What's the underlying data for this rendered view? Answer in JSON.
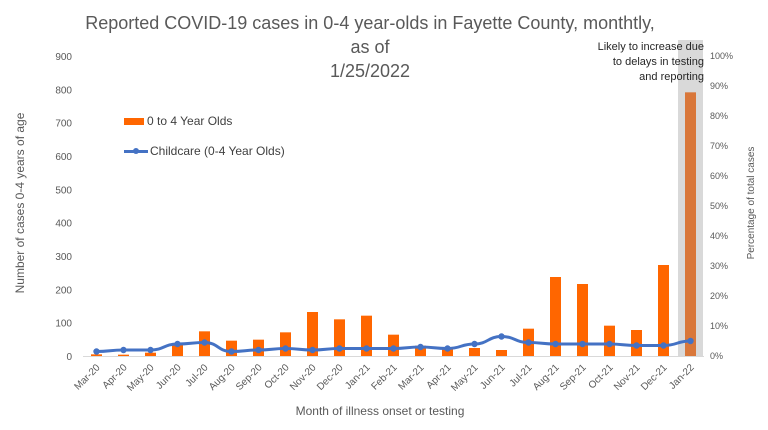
{
  "chart_data": {
    "type": "bar",
    "title": "Reported COVID-19 cases in 0-4 year-olds in Fayette County, monthtly, as of 1/25/2022",
    "title_lines": [
      "Reported COVID-19 cases in 0-4 year-olds in Fayette County, monthtly, as of",
      "1/25/2022"
    ],
    "xlabel": "Month of illness onset or testing",
    "ylabel": "Number of cases 0-4 years of age",
    "y2label": "Percentage of total cases",
    "ylim": [
      0,
      900
    ],
    "y2lim": [
      0,
      100
    ],
    "yticks": [
      "0",
      "100",
      "200",
      "300",
      "400",
      "500",
      "600",
      "700",
      "800",
      "900"
    ],
    "y2ticks": [
      "0%",
      "10%",
      "20%",
      "30%",
      "40%",
      "50%",
      "60%",
      "70%",
      "80%",
      "90%",
      "100%"
    ],
    "grid": false,
    "legend_position": "top-left",
    "categories": [
      "Mar-20",
      "Apr-20",
      "May-20",
      "Jun-20",
      "Jul-20",
      "Aug-20",
      "Sep-20",
      "Oct-20",
      "Nov-20",
      "Dec-20",
      "Jan-21",
      "Feb-21",
      "Mar-21",
      "Apr-21",
      "May-21",
      "Jun-21",
      "Jul-21",
      "Aug-21",
      "Sep-21",
      "Oct-21",
      "Nov-21",
      "Dec-21",
      "Jan-22"
    ],
    "series": [
      {
        "name": "0 to 4 Year Olds",
        "type": "bar",
        "axis": "left",
        "color": "#ff6600",
        "highlight_color": "#d9773a",
        "values": [
          5,
          4,
          10,
          34,
          74,
          46,
          49,
          71,
          132,
          110,
          121,
          64,
          31,
          24,
          24,
          18,
          82,
          237,
          216,
          91,
          78,
          273,
          791
        ]
      },
      {
        "name": "Childcare (0-4 Year Olds)",
        "type": "line",
        "axis": "right",
        "unit": "%",
        "color": "#4472c4",
        "values": [
          1.5,
          2,
          2,
          4,
          4.5,
          1.5,
          2,
          2.5,
          2,
          2.5,
          2.5,
          2.5,
          3,
          2.5,
          4,
          6.5,
          4.5,
          4,
          4,
          4,
          3.5,
          3.5,
          5
        ]
      }
    ],
    "annotation": {
      "text_lines": [
        "Likely to increase due",
        "to delays in testing",
        "and reporting"
      ],
      "category": "Jan-22",
      "shade_color": "#d9d9d9"
    }
  }
}
